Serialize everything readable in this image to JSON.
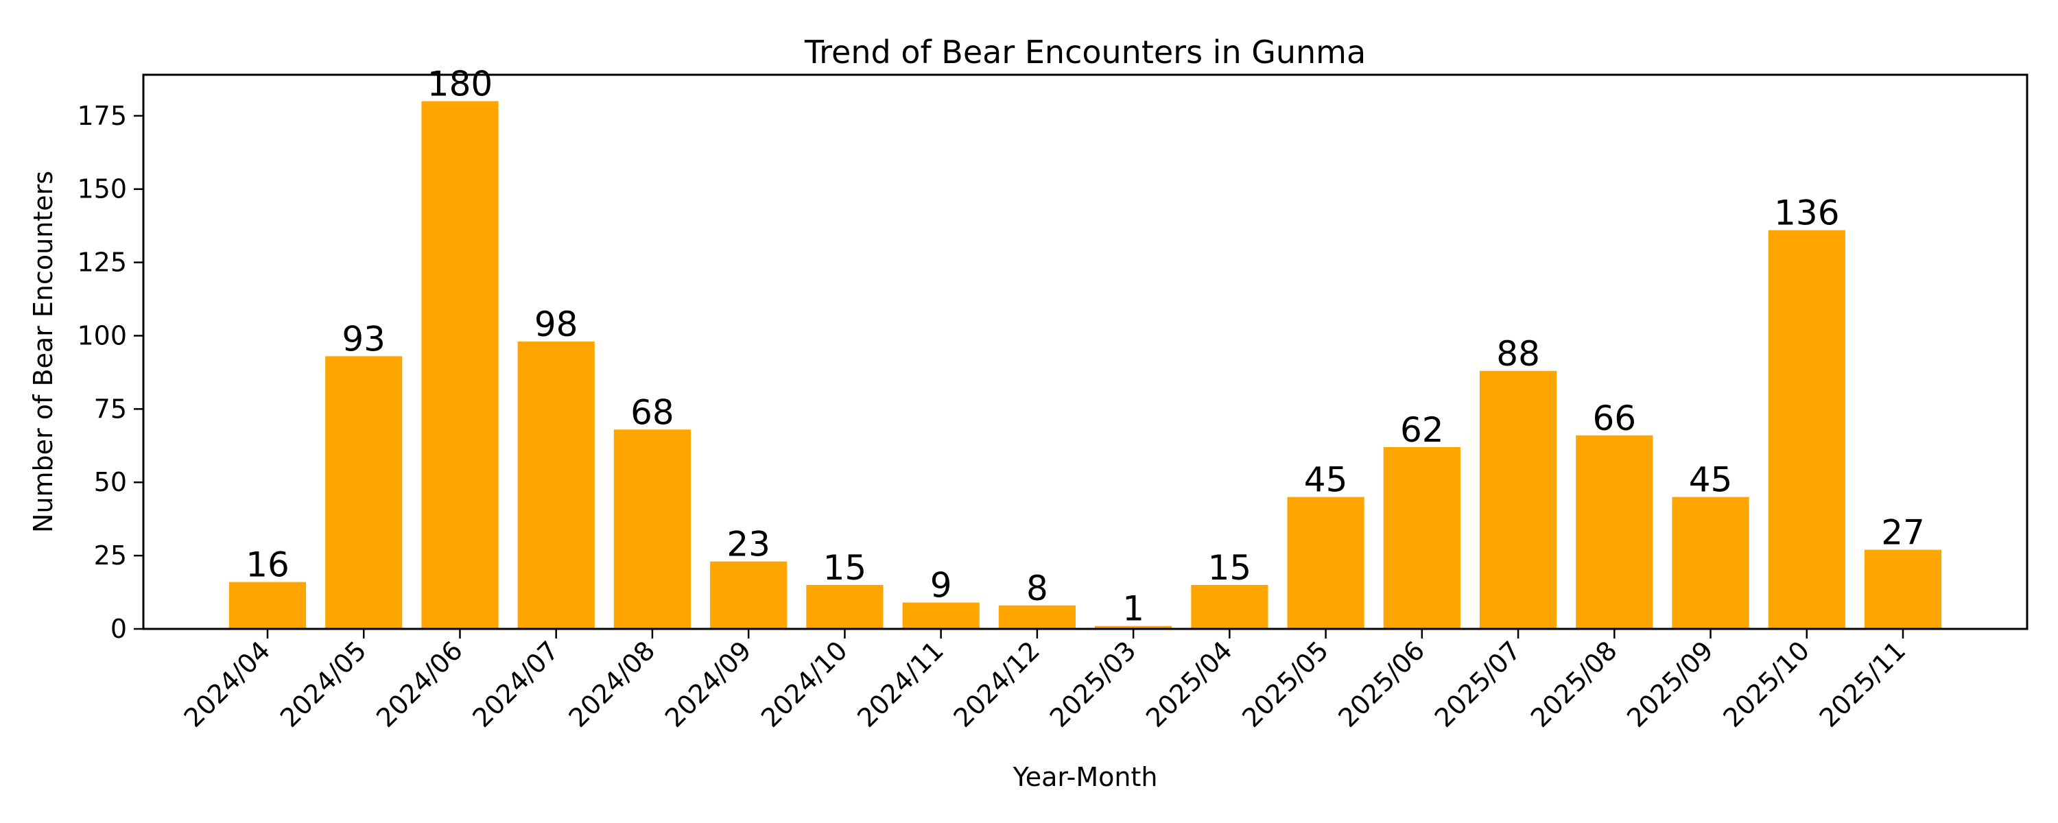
{
  "chart_data": {
    "type": "bar",
    "title": "Trend of Bear Encounters in Gunma",
    "xlabel": "Year-Month",
    "ylabel": "Number of Bear Encounters",
    "categories": [
      "2024/04",
      "2024/05",
      "2024/06",
      "2024/07",
      "2024/08",
      "2024/09",
      "2024/10",
      "2024/11",
      "2024/12",
      "2025/03",
      "2025/04",
      "2025/05",
      "2025/06",
      "2025/07",
      "2025/08",
      "2025/09",
      "2025/10",
      "2025/11"
    ],
    "values": [
      16,
      93,
      180,
      98,
      68,
      23,
      15,
      9,
      8,
      1,
      15,
      45,
      62,
      88,
      66,
      45,
      136,
      27
    ],
    "ylim": [
      0,
      189
    ],
    "yticks": [
      0,
      25,
      50,
      75,
      100,
      125,
      150,
      175
    ],
    "bar_color": "#FFA500",
    "grid": false,
    "legend": null,
    "xtick_rotation": 45,
    "data_labels": true
  }
}
